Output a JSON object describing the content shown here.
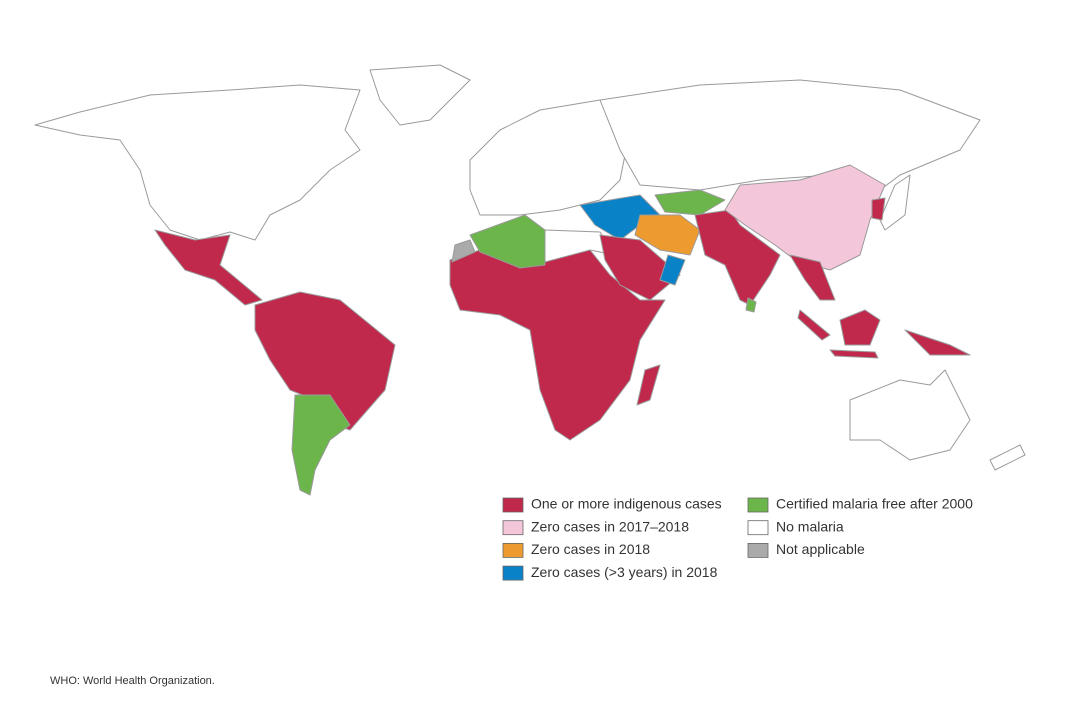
{
  "legend": {
    "items": [
      {
        "label": "One or more indigenous cases",
        "color": "#c0284c"
      },
      {
        "label": "Zero cases in 2017–2018",
        "color": "#f4c6da"
      },
      {
        "label": "Zero cases in 2018",
        "color": "#ed9a2f"
      },
      {
        "label": "Zero cases (>3 years) in 2018",
        "color": "#0a82c8"
      },
      {
        "label": "Certified malaria free after 2000",
        "color": "#6cb54a"
      },
      {
        "label": "No malaria",
        "color": "#ffffff"
      },
      {
        "label": "Not applicable",
        "color": "#aaaaaa"
      }
    ]
  },
  "footnote": "WHO: World Health Organization."
}
